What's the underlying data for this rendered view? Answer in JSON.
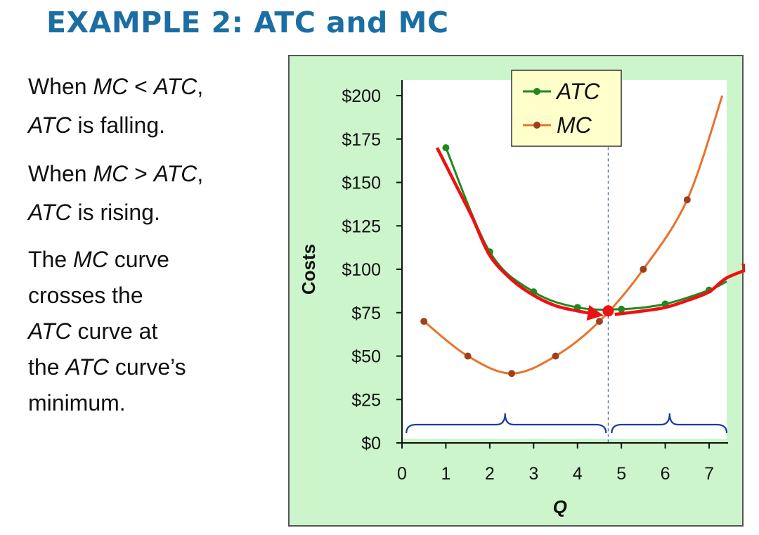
{
  "title": "EXAMPLE 2:  ATC and MC",
  "bullets": [
    {
      "parts": [
        {
          "t": "When ",
          "i": false
        },
        {
          "t": "MC",
          "i": true
        },
        {
          "t": " < ",
          "i": false
        },
        {
          "t": "ATC",
          "i": true
        },
        {
          "t": ",",
          "i": false
        }
      ],
      "parts2": [
        {
          "t": "ATC",
          "i": true
        },
        {
          "t": " is falling.",
          "i": false
        }
      ]
    },
    {
      "parts": [
        {
          "t": "When ",
          "i": false
        },
        {
          "t": "MC",
          "i": true
        },
        {
          "t": " > ",
          "i": false
        },
        {
          "t": "ATC",
          "i": true
        },
        {
          "t": ",",
          "i": false
        }
      ],
      "parts2": [
        {
          "t": "ATC",
          "i": true
        },
        {
          "t": " is rising.",
          "i": false
        }
      ]
    }
  ],
  "paragraph_lines": [
    [
      {
        "t": "The ",
        "i": false
      },
      {
        "t": "MC",
        "i": true
      },
      {
        "t": " curve",
        "i": false
      }
    ],
    [
      {
        "t": "crosses the",
        "i": false
      }
    ],
    [
      {
        "t": "ATC",
        "i": true
      },
      {
        "t": " curve at",
        "i": false
      }
    ],
    [
      {
        "t": "the ",
        "i": false
      },
      {
        "t": "ATC",
        "i": true
      },
      {
        "t": " curve’s",
        "i": false
      }
    ],
    [
      {
        "t": "minimum.",
        "i": false
      }
    ]
  ],
  "chart_data": {
    "type": "line",
    "xlabel": "Q",
    "ylabel": "Costs",
    "xlim": [
      0,
      7.4
    ],
    "ylim": [
      0,
      200
    ],
    "x_ticks": [
      0,
      1,
      2,
      3,
      4,
      5,
      6,
      7
    ],
    "y_ticks": [
      0,
      25,
      50,
      75,
      100,
      125,
      150,
      175,
      200
    ],
    "y_tick_labels": [
      "$0",
      "$25",
      "$50",
      "$75",
      "$100",
      "$125",
      "$150",
      "$175",
      "$200"
    ],
    "legend_position": "top-right",
    "series": [
      {
        "name": "ATC",
        "color": "#1e8a1e",
        "points": [
          [
            1,
            170
          ],
          [
            2,
            110
          ],
          [
            3,
            87
          ],
          [
            4,
            78
          ],
          [
            5,
            77
          ],
          [
            6,
            80
          ],
          [
            7,
            88
          ]
        ],
        "line_extends_to": [
          7.4,
          93
        ]
      },
      {
        "name": "MC",
        "color": "#e8732a",
        "points": [
          [
            0.5,
            70
          ],
          [
            1.5,
            50
          ],
          [
            2.5,
            40
          ],
          [
            3.5,
            50
          ],
          [
            4.5,
            70
          ],
          [
            5.5,
            100
          ],
          [
            6.5,
            140
          ]
        ],
        "line_extends_to": [
          7.3,
          200
        ]
      }
    ],
    "intersection": {
      "x": 4.7,
      "y": 76,
      "color": "#ee1111"
    },
    "guide_line_x": 4.7,
    "annotation_arrows": [
      {
        "direction": "falling",
        "color": "#ee1111",
        "points": [
          [
            0.8,
            170
          ],
          [
            1.2,
            150
          ],
          [
            1.6,
            130
          ],
          [
            2,
            108
          ],
          [
            2.5,
            94
          ],
          [
            3,
            85
          ],
          [
            3.5,
            79
          ],
          [
            4,
            76
          ],
          [
            4.45,
            74
          ]
        ]
      },
      {
        "direction": "rising",
        "color": "#ee1111",
        "points": [
          [
            4.85,
            74
          ],
          [
            5.5,
            76
          ],
          [
            6,
            78
          ],
          [
            6.5,
            82
          ],
          [
            7,
            87
          ],
          [
            7.4,
            95
          ],
          [
            8.0,
            101
          ]
        ]
      }
    ],
    "braces": [
      {
        "from": 0.1,
        "to": 4.65,
        "tip": 2.35,
        "color": "#1a3da0"
      },
      {
        "from": 4.78,
        "to": 7.4,
        "tip": 6.1,
        "color": "#1a3da0"
      }
    ]
  }
}
